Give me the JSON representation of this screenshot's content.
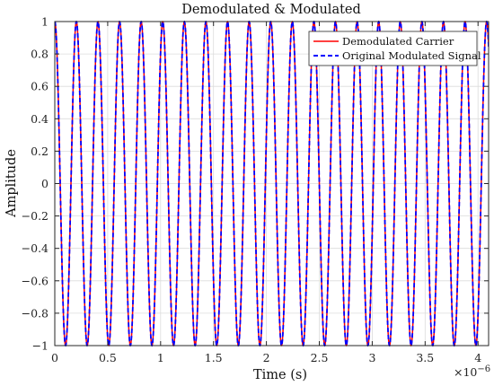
{
  "chart_data": {
    "type": "line",
    "title": "Demodulated & Modulated",
    "xlabel": "Time (s)",
    "ylabel": "Amplitude",
    "x_exponent_label": "×10",
    "x_exponent_power": "−6",
    "xlim": [
      0,
      4.1
    ],
    "ylim": [
      -1,
      1
    ],
    "x_unit_scale": 1e-06,
    "xticks": [
      0,
      0.5,
      1,
      1.5,
      2,
      2.5,
      3,
      3.5,
      4
    ],
    "xtick_labels": [
      "0",
      "0.5",
      "1",
      "1.5",
      "2",
      "2.5",
      "3",
      "3.5",
      "4"
    ],
    "yticks": [
      -1,
      -0.8,
      -0.6,
      -0.4,
      -0.2,
      0,
      0.2,
      0.4,
      0.6,
      0.8,
      1
    ],
    "ytick_labels": [
      "−1",
      "−0.8",
      "−0.6",
      "−0.4",
      "−0.2",
      "0",
      "0.2",
      "0.4",
      "0.6",
      "0.8",
      "1"
    ],
    "grid": true,
    "legend_position": "top-right",
    "series": [
      {
        "name": "Demodulated Carrier",
        "color": "#ff0000",
        "style": "solid",
        "function": "cos",
        "amplitude": 1,
        "frequency_hz": 4900000.0,
        "phase": 0
      },
      {
        "name": "Original Modulated Signal",
        "color": "#0000ff",
        "style": "dashed",
        "function": "cos",
        "amplitude": 1,
        "frequency_hz": 4900000.0,
        "phase": 0
      }
    ]
  }
}
